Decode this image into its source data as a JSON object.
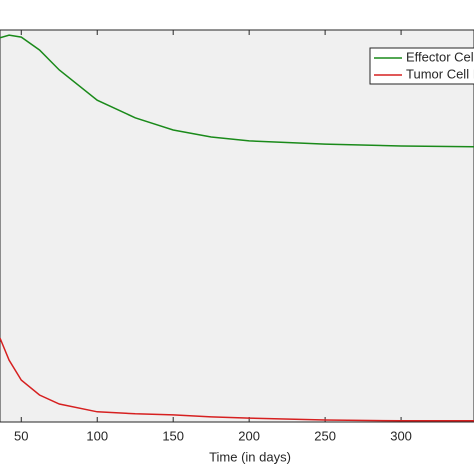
{
  "chart_data": {
    "type": "line",
    "xlabel": "Time (in days)",
    "x": [
      36,
      42,
      50,
      62,
      75,
      100,
      125,
      150,
      175,
      200,
      250,
      300,
      348
    ],
    "series": [
      {
        "name": "Effector Cell",
        "color": "#1a8a1a",
        "values": [
          0.98,
          0.987,
          0.982,
          0.949,
          0.898,
          0.821,
          0.776,
          0.745,
          0.727,
          0.717,
          0.709,
          0.704,
          0.702
        ]
      },
      {
        "name": "Tumor Cell I",
        "color": "#d62020",
        "values": [
          0.214,
          0.158,
          0.107,
          0.069,
          0.046,
          0.026,
          0.021,
          0.018,
          0.013,
          0.01,
          0.005,
          0.003,
          0.003
        ]
      }
    ],
    "xlim": [
      36,
      348
    ],
    "ylim": [
      0,
      1
    ],
    "xticks": [
      50,
      100,
      150,
      200,
      250,
      300
    ],
    "legend": "top-right"
  }
}
